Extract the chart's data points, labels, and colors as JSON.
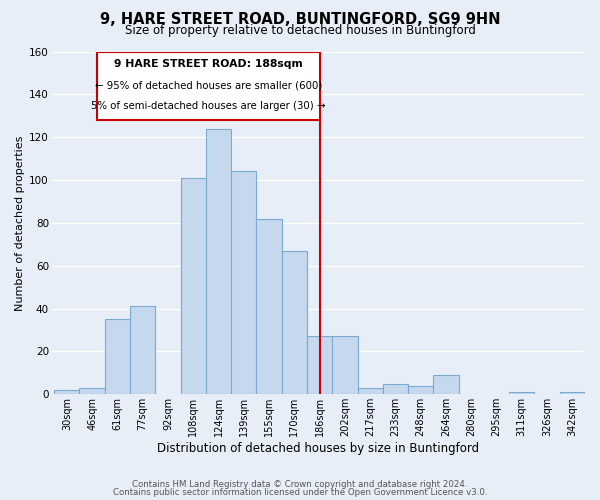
{
  "title": "9, HARE STREET ROAD, BUNTINGFORD, SG9 9HN",
  "subtitle": "Size of property relative to detached houses in Buntingford",
  "xlabel": "Distribution of detached houses by size in Buntingford",
  "ylabel": "Number of detached properties",
  "bar_color": "#c5d8ee",
  "bar_edge_color": "#7aaad0",
  "background_color": "#e8eef8",
  "grid_color": "#d0d8e8",
  "categories": [
    "30sqm",
    "46sqm",
    "61sqm",
    "77sqm",
    "92sqm",
    "108sqm",
    "124sqm",
    "139sqm",
    "155sqm",
    "170sqm",
    "186sqm",
    "202sqm",
    "217sqm",
    "233sqm",
    "248sqm",
    "264sqm",
    "280sqm",
    "295sqm",
    "311sqm",
    "326sqm",
    "342sqm"
  ],
  "values": [
    2,
    3,
    35,
    41,
    0,
    101,
    124,
    104,
    82,
    67,
    27,
    27,
    3,
    5,
    4,
    9,
    0,
    0,
    1,
    0,
    1
  ],
  "vline_idx": 10,
  "annotation_title": "9 HARE STREET ROAD: 188sqm",
  "annotation_line1": "← 95% of detached houses are smaller (600)",
  "annotation_line2": "5% of semi-detached houses are larger (30) →",
  "ylim": [
    0,
    160
  ],
  "yticks": [
    0,
    20,
    40,
    60,
    80,
    100,
    120,
    140,
    160
  ],
  "footer_line1": "Contains HM Land Registry data © Crown copyright and database right 2024.",
  "footer_line2": "Contains public sector information licensed under the Open Government Licence v3.0."
}
